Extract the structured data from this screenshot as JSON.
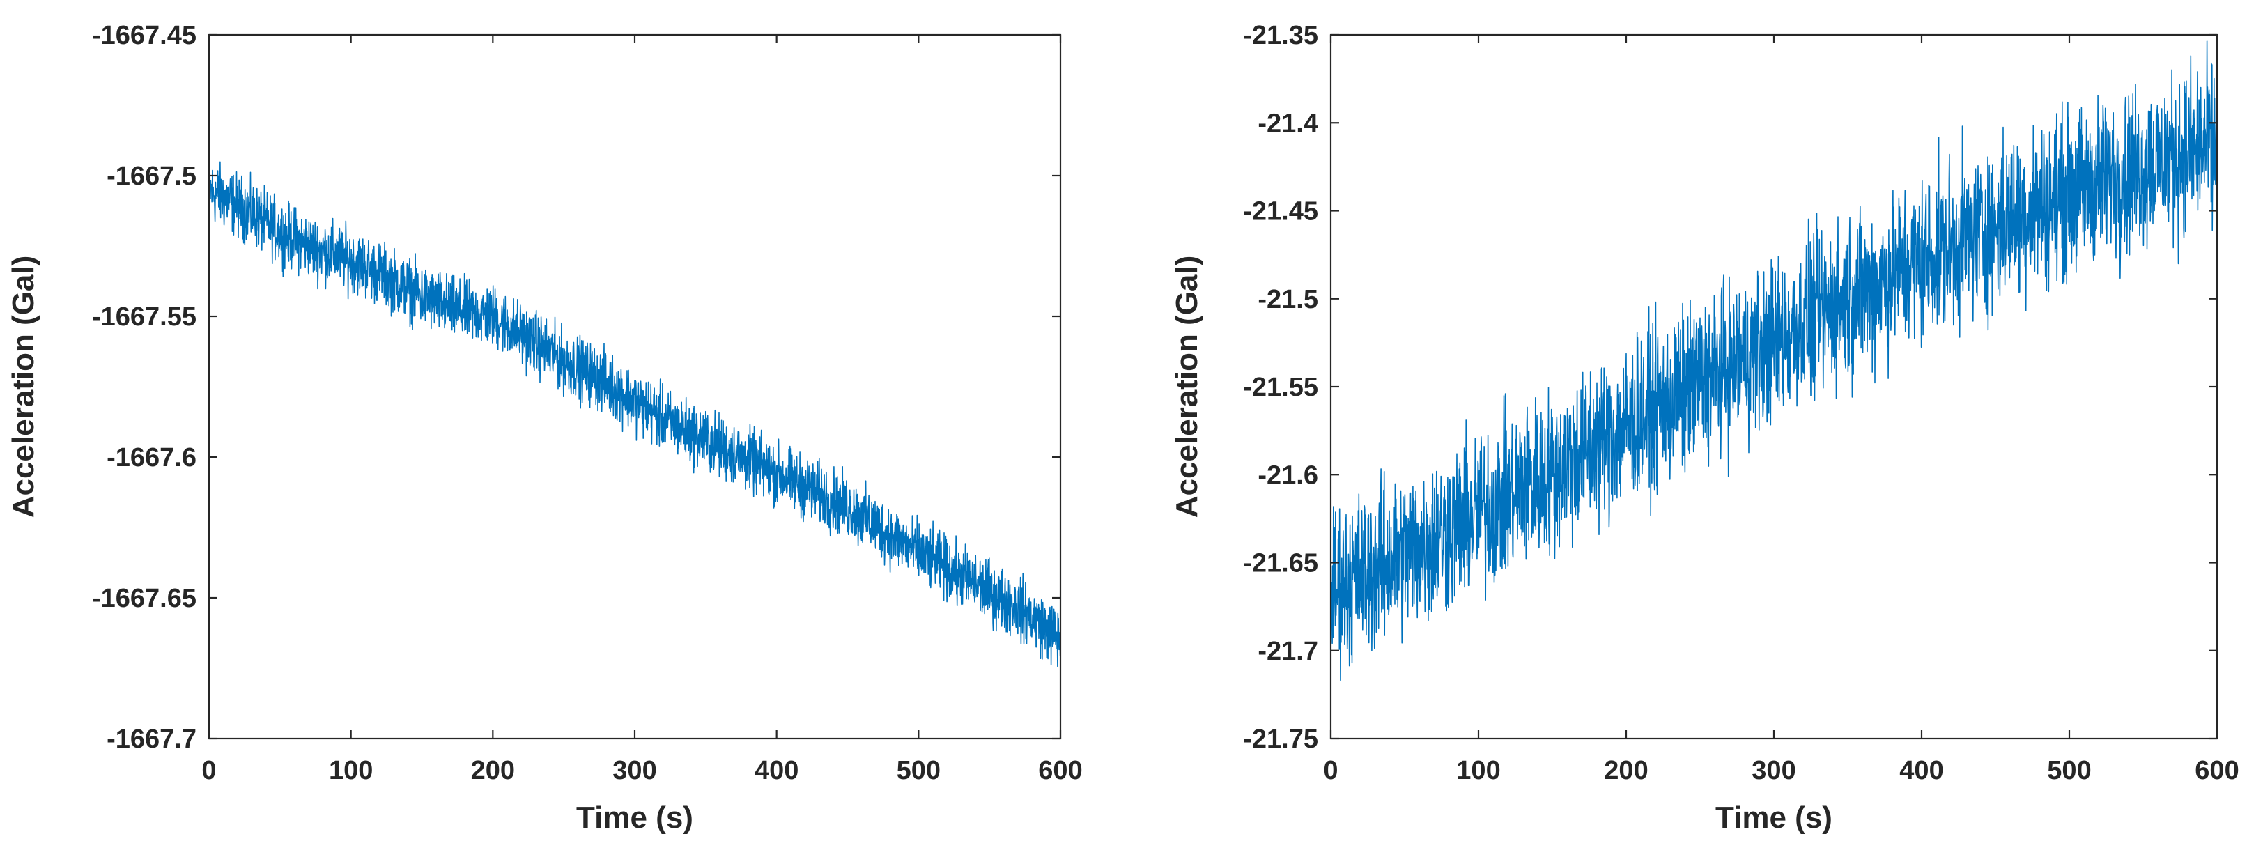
{
  "chart_data": [
    {
      "type": "line",
      "title": "",
      "xlabel": "Time (s)",
      "ylabel": "Acceleration (Gal)",
      "xlim": [
        0,
        600
      ],
      "ylim": [
        -1667.7,
        -1667.45
      ],
      "xticks": [
        0,
        100,
        200,
        300,
        400,
        500,
        600
      ],
      "xtick_labels": [
        "0",
        "100",
        "200",
        "300",
        "400",
        "500",
        "600"
      ],
      "yticks": [
        -1667.7,
        -1667.65,
        -1667.6,
        -1667.55,
        -1667.5,
        -1667.45
      ],
      "ytick_labels": [
        "-1667.7",
        "-1667.65",
        "-1667.6",
        "-1667.55",
        "-1667.5",
        "-1667.45"
      ],
      "grid": false,
      "color": "#0072BD",
      "series": [
        {
          "x": [
            0,
            25,
            50,
            75,
            100,
            125,
            150,
            175,
            200,
            225,
            250,
            275,
            300,
            325,
            350,
            375,
            400,
            425,
            450,
            475,
            500,
            525,
            550,
            575,
            600
          ],
          "values": [
            -1667.505,
            -1667.512,
            -1667.52,
            -1667.526,
            -1667.53,
            -1667.536,
            -1667.543,
            -1667.548,
            -1667.55,
            -1667.558,
            -1667.566,
            -1667.572,
            -1667.58,
            -1667.588,
            -1667.594,
            -1667.6,
            -1667.606,
            -1667.612,
            -1667.618,
            -1667.626,
            -1667.634,
            -1667.641,
            -1667.648,
            -1667.655,
            -1667.665
          ],
          "noise_amplitude": 0.006
        }
      ]
    },
    {
      "type": "line",
      "title": "",
      "xlabel": "Time (s)",
      "ylabel": "Acceleration (Gal)",
      "xlim": [
        0,
        600
      ],
      "ylim": [
        -21.75,
        -21.35
      ],
      "xticks": [
        0,
        100,
        200,
        300,
        400,
        500,
        600
      ],
      "xtick_labels": [
        "0",
        "100",
        "200",
        "300",
        "400",
        "500",
        "600"
      ],
      "yticks": [
        -21.75,
        -21.7,
        -21.65,
        -21.6,
        -21.55,
        -21.5,
        -21.45,
        -21.4,
        -21.35
      ],
      "ytick_labels": [
        "-21.75",
        "-21.7",
        "-21.65",
        "-21.6",
        "-21.55",
        "-21.5",
        "-21.45",
        "-21.4",
        "-21.35"
      ],
      "grid": false,
      "color": "#0072BD",
      "series": [
        {
          "x": [
            0,
            25,
            50,
            75,
            100,
            125,
            150,
            175,
            200,
            225,
            250,
            275,
            300,
            325,
            350,
            375,
            400,
            425,
            450,
            475,
            500,
            525,
            550,
            575,
            600
          ],
          "values": [
            -21.665,
            -21.655,
            -21.645,
            -21.634,
            -21.622,
            -21.61,
            -21.598,
            -21.585,
            -21.572,
            -21.56,
            -21.548,
            -21.536,
            -21.524,
            -21.512,
            -21.5,
            -21.489,
            -21.478,
            -21.468,
            -21.458,
            -21.448,
            -21.44,
            -21.432,
            -21.425,
            -21.418,
            -21.412
          ],
          "noise_amplitude": 0.025
        }
      ]
    }
  ]
}
